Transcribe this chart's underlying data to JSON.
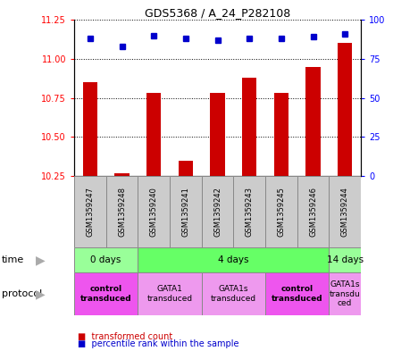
{
  "title": "GDS5368 / A_24_P282108",
  "samples": [
    "GSM1359247",
    "GSM1359248",
    "GSM1359240",
    "GSM1359241",
    "GSM1359242",
    "GSM1359243",
    "GSM1359245",
    "GSM1359246",
    "GSM1359244"
  ],
  "transformed_count": [
    10.85,
    10.27,
    10.78,
    10.35,
    10.78,
    10.88,
    10.78,
    10.95,
    11.1
  ],
  "percentile_rank": [
    88,
    83,
    90,
    88,
    87,
    88,
    88,
    89,
    91
  ],
  "ylim_left": [
    10.25,
    11.25
  ],
  "yticks_left": [
    10.25,
    10.5,
    10.75,
    11.0,
    11.25
  ],
  "yticks_right": [
    0,
    25,
    50,
    75,
    100
  ],
  "ylim_right": [
    0,
    100
  ],
  "bar_color": "#cc0000",
  "dot_color": "#0000cc",
  "baseline": 10.25,
  "time_groups": [
    {
      "label": "0 days",
      "start": 0,
      "end": 2,
      "color": "#99ff99"
    },
    {
      "label": "4 days",
      "start": 2,
      "end": 8,
      "color": "#66ff66"
    },
    {
      "label": "14 days",
      "start": 8,
      "end": 9,
      "color": "#99ff99"
    }
  ],
  "protocol_groups": [
    {
      "label": "control\ntransduced",
      "start": 0,
      "end": 2,
      "color": "#ee55ee",
      "bold": true
    },
    {
      "label": "GATA1\ntransduced",
      "start": 2,
      "end": 4,
      "color": "#ee99ee",
      "bold": false
    },
    {
      "label": "GATA1s\ntransduced",
      "start": 4,
      "end": 6,
      "color": "#ee99ee",
      "bold": false
    },
    {
      "label": "control\ntransduced",
      "start": 6,
      "end": 8,
      "color": "#ee55ee",
      "bold": true
    },
    {
      "label": "GATA1s\ntransdu\nced",
      "start": 8,
      "end": 9,
      "color": "#ee99ee",
      "bold": false
    }
  ]
}
